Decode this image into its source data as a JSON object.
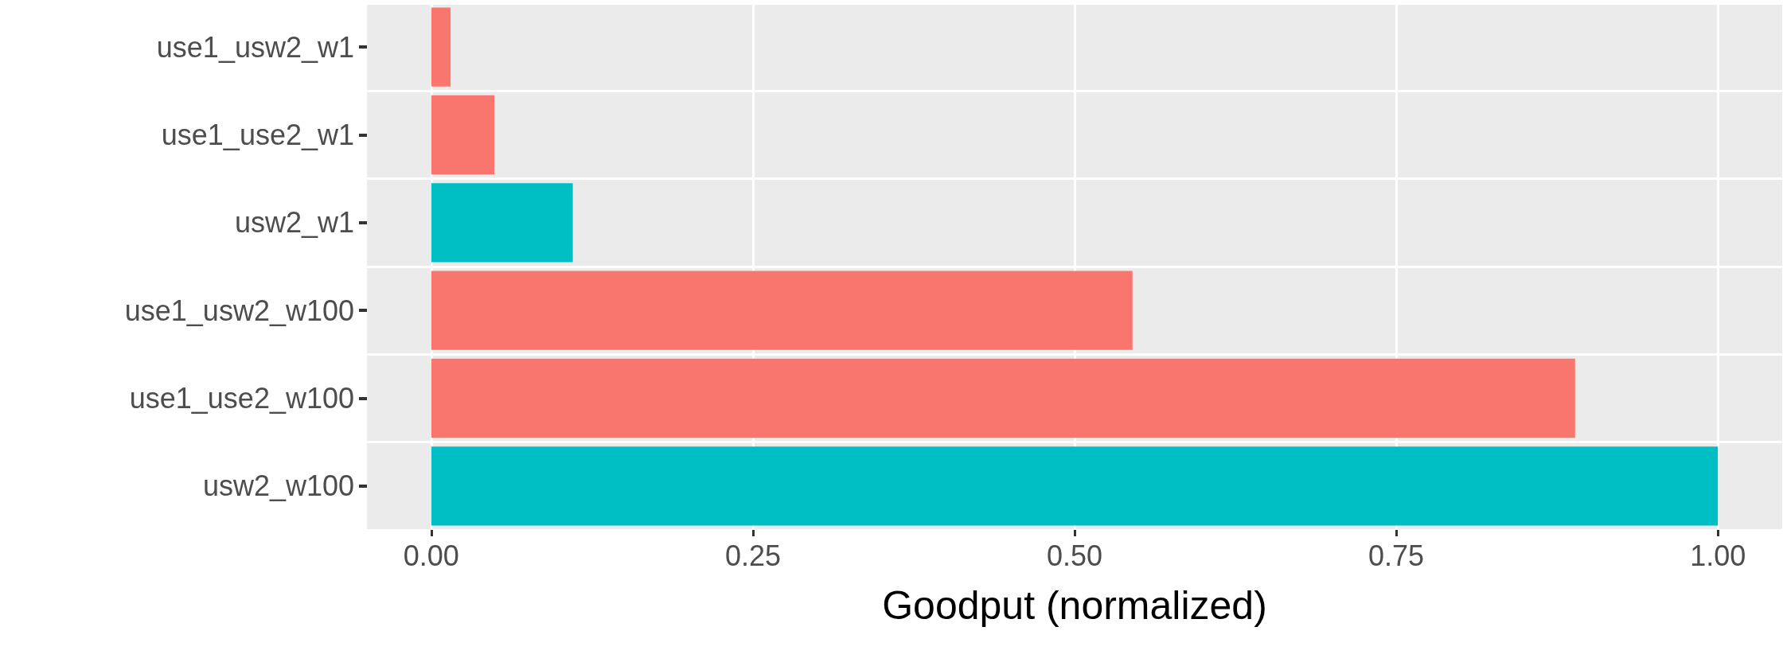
{
  "chart_data": {
    "type": "bar",
    "orientation": "horizontal",
    "xlabel": "Goodput (normalized)",
    "categories": [
      "use1_usw2_w1",
      "use1_use2_w1",
      "usw2_w1",
      "use1_usw2_w100",
      "use1_use2_w100",
      "usw2_w100"
    ],
    "values": [
      0.015,
      0.049,
      0.11,
      0.545,
      0.889,
      1.0
    ],
    "colors": [
      "#f8766d",
      "#f8766d",
      "#00bfc4",
      "#f8766d",
      "#f8766d",
      "#00bfc4"
    ],
    "xlim": [
      -0.05,
      1.05
    ],
    "xticks": [
      {
        "value": 0,
        "label": "0.00"
      },
      {
        "value": 0.25,
        "label": "0.25"
      },
      {
        "value": 0.5,
        "label": "0.50"
      },
      {
        "value": 0.75,
        "label": "0.75"
      },
      {
        "value": 1,
        "label": "1.00"
      }
    ],
    "grid": true
  }
}
